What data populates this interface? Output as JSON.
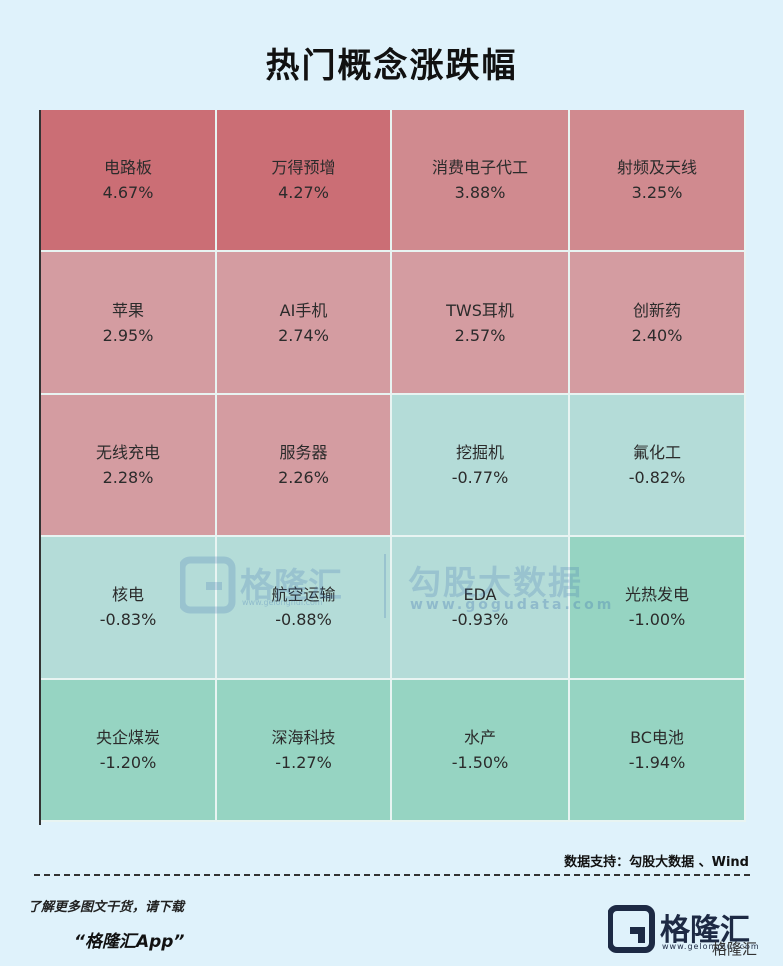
{
  "title": "热门概念涨跌幅",
  "chart_data": {
    "type": "heatmap",
    "title": "热门概念涨跌幅",
    "unit": "%",
    "rows": 5,
    "cols": 4,
    "cells": [
      {
        "name": "电路板",
        "value": 4.67,
        "label": "4.67%"
      },
      {
        "name": "万得预增",
        "value": 4.27,
        "label": "4.27%"
      },
      {
        "name": "消费电子代工",
        "value": 3.88,
        "label": "3.88%"
      },
      {
        "name": "射频及天线",
        "value": 3.25,
        "label": "3.25%"
      },
      {
        "name": "苹果",
        "value": 2.95,
        "label": "2.95%"
      },
      {
        "name": "AI手机",
        "value": 2.74,
        "label": "2.74%"
      },
      {
        "name": "TWS耳机",
        "value": 2.57,
        "label": "2.57%"
      },
      {
        "name": "创新药",
        "value": 2.4,
        "label": "2.40%"
      },
      {
        "name": "无线充电",
        "value": 2.28,
        "label": "2.28%"
      },
      {
        "name": "服务器",
        "value": 2.26,
        "label": "2.26%"
      },
      {
        "name": "挖掘机",
        "value": -0.77,
        "label": "-0.77%"
      },
      {
        "name": "氟化工",
        "value": -0.82,
        "label": "-0.82%"
      },
      {
        "name": "核电",
        "value": -0.83,
        "label": "-0.83%"
      },
      {
        "name": "航空运输",
        "value": -0.88,
        "label": "-0.88%"
      },
      {
        "name": "EDA",
        "value": -0.93,
        "label": "-0.93%"
      },
      {
        "name": "光热发电",
        "value": -1.0,
        "label": "-1.00%"
      },
      {
        "name": "央企煤炭",
        "value": -1.2,
        "label": "-1.20%"
      },
      {
        "name": "深海科技",
        "value": -1.27,
        "label": "-1.27%"
      },
      {
        "name": "水产",
        "value": -1.5,
        "label": "-1.50%"
      },
      {
        "name": "BC电池",
        "value": -1.94,
        "label": "-1.94%"
      }
    ],
    "colors": {
      "positive_strong": "#cb6e75",
      "positive_mid": "#d08a8f",
      "positive_light": "#d49ca1",
      "negative_light": "#b4dcd8",
      "negative_strong": "#96d4c2"
    }
  },
  "watermark": {
    "brand": "格隆汇",
    "brand_url": "www.gelonghui.com",
    "partner": "勾股大数据",
    "partner_url": "www.gogudata.com"
  },
  "footer": {
    "source": "数据支持：勾股大数据 、Wind",
    "promo_line1": "了解更多图文干货，请下载",
    "promo_line2": "“格隆汇App”",
    "logo_text": "格隆汇",
    "logo_url": "www.gelonghui.com",
    "tag": "格隆汇"
  }
}
